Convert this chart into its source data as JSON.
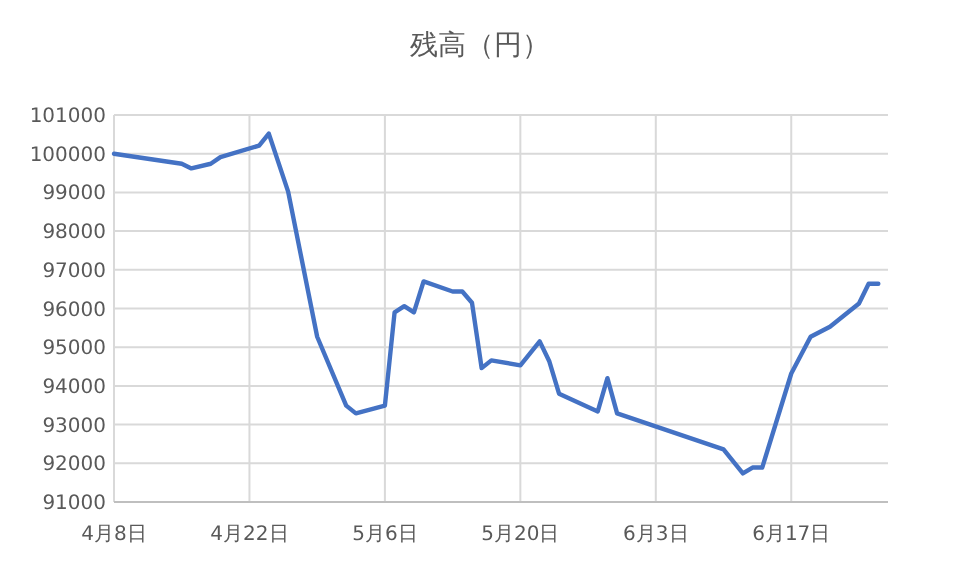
{
  "chart_data": {
    "type": "line",
    "title": "残高（円）",
    "x": [
      "--04-08",
      "--04-15",
      "--04-16",
      "--04-18",
      "--04-19",
      "--04-23",
      "--04-24",
      "--04-26",
      "--04-29",
      "--05-02",
      "--05-03",
      "--05-06",
      "--05-07",
      "--05-08",
      "--05-09",
      "--05-10",
      "--05-13",
      "--05-14",
      "--05-15",
      "--05-16",
      "--05-17",
      "--05-20",
      "--05-22",
      "--05-23",
      "--05-24",
      "--05-28",
      "--05-29",
      "--05-30",
      "--06-10",
      "--06-12",
      "--06-13",
      "--06-14",
      "--06-17",
      "--06-19",
      "--06-21",
      "--06-24",
      "--06-25",
      "--06-26"
    ],
    "series": [
      {
        "color": "#4472c4",
        "values": [
          100000,
          99740,
          99620,
          99740,
          99910,
          100210,
          100520,
          99020,
          95270,
          93490,
          93290,
          93490,
          95900,
          96060,
          95900,
          96700,
          96440,
          96440,
          96150,
          94460,
          94660,
          94530,
          95150,
          94630,
          93800,
          93340,
          94200,
          93290,
          92360,
          91740,
          91890,
          91890,
          94320,
          95270,
          95530,
          96130,
          96640,
          96640
        ]
      }
    ],
    "xlim": [
      "--04-08",
      "--06-27"
    ],
    "xticks": [
      {
        "value": "--04-08",
        "label": "4月8日"
      },
      {
        "value": "--04-22",
        "label": "4月22日"
      },
      {
        "value": "--05-06",
        "label": "5月6日"
      },
      {
        "value": "--05-20",
        "label": "5月20日"
      },
      {
        "value": "--06-03",
        "label": "6月3日"
      },
      {
        "value": "--06-17",
        "label": "6月17日"
      }
    ],
    "ylim": [
      91000,
      101000
    ],
    "yticks": [
      91000,
      92000,
      93000,
      94000,
      95000,
      96000,
      97000,
      98000,
      99000,
      100000,
      101000
    ],
    "grid": true,
    "marker": "none",
    "line_style": "solid"
  }
}
